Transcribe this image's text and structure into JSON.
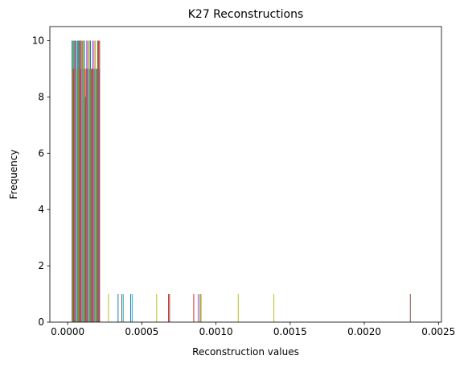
{
  "chart_data": {
    "type": "bar",
    "title": "K27 Reconstructions",
    "xlabel": "Reconstruction values",
    "ylabel": "Frequency",
    "xlim": [
      -0.00012,
      0.00252
    ],
    "ylim": [
      0,
      10.5
    ],
    "x_ticks": [
      {
        "value": 0.0,
        "label": "0.0000"
      },
      {
        "value": 0.0005,
        "label": "0.0005"
      },
      {
        "value": 0.001,
        "label": "0.0010"
      },
      {
        "value": 0.0015,
        "label": "0.0015"
      },
      {
        "value": 0.002,
        "label": "0.0020"
      },
      {
        "value": 0.0025,
        "label": "0.0025"
      }
    ],
    "y_ticks": [
      {
        "value": 0,
        "label": "0"
      },
      {
        "value": 2,
        "label": "2"
      },
      {
        "value": 4,
        "label": "4"
      },
      {
        "value": 6,
        "label": "6"
      },
      {
        "value": 8,
        "label": "8"
      },
      {
        "value": 10,
        "label": "10"
      }
    ],
    "grid": false,
    "legend": "none",
    "palette": [
      "#1f77b4",
      "#ff7f0e",
      "#2ca02c",
      "#d62728",
      "#9467bd",
      "#8c564b",
      "#e377c2",
      "#7f7f7f",
      "#bcbd22",
      "#17becf"
    ],
    "cluster": {
      "x_start": 3e-05,
      "x_end": 0.000215,
      "heights": [
        10,
        9,
        10,
        9,
        10,
        10,
        9,
        10,
        9,
        10,
        10,
        9,
        10,
        10,
        9,
        10,
        9,
        10,
        10,
        9,
        10,
        9,
        8,
        9,
        10,
        9,
        10,
        9,
        10,
        9,
        10,
        9,
        9,
        9,
        10,
        9,
        10,
        9,
        10,
        9,
        9,
        9,
        10,
        10,
        9,
        10
      ]
    },
    "outliers": [
      {
        "x": 0.000275,
        "value": 1,
        "color": "#bcbd22"
      },
      {
        "x": 0.00034,
        "value": 1,
        "color": "#1f77b4"
      },
      {
        "x": 0.000365,
        "value": 1,
        "color": "#8c564b"
      },
      {
        "x": 0.000375,
        "value": 1,
        "color": "#17becf"
      },
      {
        "x": 0.000425,
        "value": 1,
        "color": "#1f77b4"
      },
      {
        "x": 0.000435,
        "value": 1,
        "color": "#17becf"
      },
      {
        "x": 0.0006,
        "value": 1,
        "color": "#bcbd22"
      },
      {
        "x": 0.00068,
        "value": 1,
        "color": "#d62728"
      },
      {
        "x": 0.000687,
        "value": 1,
        "color": "#8c564b"
      },
      {
        "x": 0.00085,
        "value": 1,
        "color": "#d62728"
      },
      {
        "x": 0.00088,
        "value": 1,
        "color": "#9467bd"
      },
      {
        "x": 0.000893,
        "value": 1,
        "color": "#8c564b"
      },
      {
        "x": 0.0009,
        "value": 1,
        "color": "#bcbd22"
      },
      {
        "x": 0.00115,
        "value": 1,
        "color": "#bcbd22"
      },
      {
        "x": 0.00139,
        "value": 1,
        "color": "#bcbd22"
      },
      {
        "x": 0.00231,
        "value": 1,
        "color": "#8c564b"
      }
    ]
  }
}
